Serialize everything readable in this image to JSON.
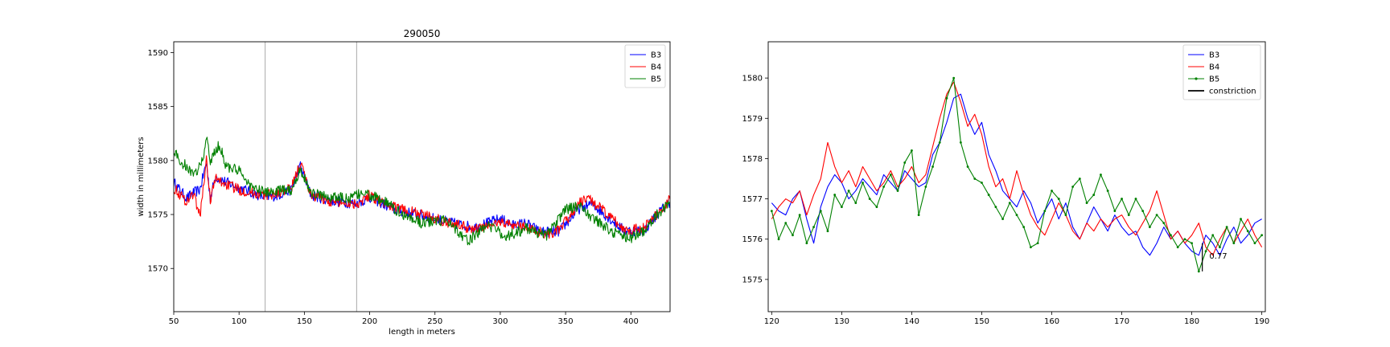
{
  "chart_data": [
    {
      "type": "line",
      "title": "290050",
      "xlabel": "length in meters",
      "ylabel": "width in millimeters",
      "xlim": [
        50,
        430
      ],
      "ylim": [
        1566,
        1591
      ],
      "xticks": [
        50,
        100,
        150,
        200,
        250,
        300,
        350,
        400
      ],
      "yticks": [
        1570,
        1575,
        1580,
        1585,
        1590
      ],
      "vlines": [
        120,
        190
      ],
      "vline_color": "#a0a0a0",
      "grid": false,
      "legend_position": "top-right",
      "noise": 0.5,
      "series": [
        {
          "name": "B3",
          "color": "#0000ff",
          "anchors": [
            [
              50,
              1578
            ],
            [
              55,
              1577.2
            ],
            [
              60,
              1576.5
            ],
            [
              65,
              1577
            ],
            [
              70,
              1577.3
            ],
            [
              75,
              1579.8
            ],
            [
              78,
              1576.5
            ],
            [
              82,
              1578.5
            ],
            [
              90,
              1578
            ],
            [
              100,
              1577.5
            ],
            [
              110,
              1577
            ],
            [
              120,
              1576.6
            ],
            [
              130,
              1576.8
            ],
            [
              140,
              1577.3
            ],
            [
              147,
              1579.5
            ],
            [
              155,
              1576.8
            ],
            [
              170,
              1576.3
            ],
            [
              190,
              1576
            ],
            [
              200,
              1576.6
            ],
            [
              210,
              1576
            ],
            [
              220,
              1575.4
            ],
            [
              240,
              1574.9
            ],
            [
              260,
              1574.3
            ],
            [
              280,
              1573.8
            ],
            [
              300,
              1574.6
            ],
            [
              310,
              1574
            ],
            [
              320,
              1574.2
            ],
            [
              330,
              1573.4
            ],
            [
              345,
              1573.4
            ],
            [
              360,
              1575.5
            ],
            [
              370,
              1576
            ],
            [
              380,
              1575
            ],
            [
              395,
              1573.5
            ],
            [
              410,
              1573.5
            ],
            [
              420,
              1575
            ],
            [
              430,
              1576.2
            ]
          ]
        },
        {
          "name": "B4",
          "color": "#ff0000",
          "anchors": [
            [
              50,
              1577.5
            ],
            [
              55,
              1576.8
            ],
            [
              60,
              1576.2
            ],
            [
              65,
              1577
            ],
            [
              70,
              1574.8
            ],
            [
              75,
              1580
            ],
            [
              78,
              1576.4
            ],
            [
              82,
              1578.3
            ],
            [
              90,
              1577.8
            ],
            [
              100,
              1577.3
            ],
            [
              110,
              1577
            ],
            [
              120,
              1576.8
            ],
            [
              130,
              1577
            ],
            [
              140,
              1577.4
            ],
            [
              147,
              1579.8
            ],
            [
              155,
              1576.8
            ],
            [
              170,
              1576.2
            ],
            [
              190,
              1576
            ],
            [
              200,
              1576.8
            ],
            [
              210,
              1576.1
            ],
            [
              220,
              1575.6
            ],
            [
              240,
              1575
            ],
            [
              260,
              1574.3
            ],
            [
              280,
              1573.6
            ],
            [
              300,
              1574.3
            ],
            [
              320,
              1573.8
            ],
            [
              335,
              1573.2
            ],
            [
              345,
              1573.5
            ],
            [
              360,
              1576
            ],
            [
              368,
              1576.5
            ],
            [
              380,
              1575.2
            ],
            [
              395,
              1573.6
            ],
            [
              410,
              1573.7
            ],
            [
              420,
              1575
            ],
            [
              430,
              1576.4
            ]
          ]
        },
        {
          "name": "B5",
          "color": "#008000",
          "anchors": [
            [
              50,
              1581
            ],
            [
              55,
              1579.8
            ],
            [
              60,
              1579.5
            ],
            [
              65,
              1578.5
            ],
            [
              72,
              1580
            ],
            [
              75,
              1582
            ],
            [
              78,
              1580
            ],
            [
              85,
              1581.5
            ],
            [
              90,
              1579.5
            ],
            [
              100,
              1579
            ],
            [
              110,
              1577.5
            ],
            [
              120,
              1577
            ],
            [
              130,
              1577.2
            ],
            [
              140,
              1577.3
            ],
            [
              147,
              1579.2
            ],
            [
              155,
              1577
            ],
            [
              170,
              1576.6
            ],
            [
              185,
              1576.5
            ],
            [
              195,
              1577
            ],
            [
              210,
              1576.3
            ],
            [
              225,
              1575
            ],
            [
              240,
              1574.2
            ],
            [
              260,
              1574.5
            ],
            [
              275,
              1572.5
            ],
            [
              290,
              1574
            ],
            [
              305,
              1573
            ],
            [
              320,
              1573.7
            ],
            [
              335,
              1573
            ],
            [
              350,
              1575.5
            ],
            [
              360,
              1575.8
            ],
            [
              370,
              1574.8
            ],
            [
              385,
              1573.4
            ],
            [
              400,
              1572.8
            ],
            [
              410,
              1573.5
            ],
            [
              420,
              1575
            ],
            [
              430,
              1576
            ]
          ]
        }
      ]
    },
    {
      "type": "line",
      "title": "",
      "xlabel": "",
      "ylabel": "",
      "xlim": [
        119.5,
        190.5
      ],
      "ylim": [
        1574.2,
        1580.9
      ],
      "xticks": [
        120,
        130,
        140,
        150,
        160,
        170,
        180,
        190
      ],
      "yticks": [
        1575,
        1576,
        1577,
        1578,
        1579,
        1580
      ],
      "grid": false,
      "legend_position": "top-right",
      "annotation": {
        "text": "0.77",
        "x": 182.5,
        "y": 1575.6,
        "line_x": 181.5,
        "line_y": [
          1575.2,
          1575.9
        ]
      },
      "series": [
        {
          "name": "B3",
          "color": "#0000ff",
          "marker": false,
          "x": [
            120,
            121,
            122,
            123,
            124,
            125,
            126,
            127,
            128,
            129,
            130,
            131,
            132,
            133,
            134,
            135,
            136,
            137,
            138,
            139,
            140,
            141,
            142,
            143,
            144,
            145,
            146,
            147,
            148,
            149,
            150,
            151,
            152,
            153,
            154,
            155,
            156,
            157,
            158,
            159,
            160,
            161,
            162,
            163,
            164,
            165,
            166,
            167,
            168,
            169,
            170,
            171,
            172,
            173,
            174,
            175,
            176,
            177,
            178,
            179,
            180,
            181,
            182,
            183,
            184,
            185,
            186,
            187,
            188,
            189,
            190
          ],
          "y": [
            1576.9,
            1576.7,
            1576.6,
            1577.0,
            1577.2,
            1576.5,
            1575.9,
            1576.8,
            1577.3,
            1577.6,
            1577.4,
            1577.0,
            1577.2,
            1577.5,
            1577.3,
            1577.1,
            1577.6,
            1577.4,
            1577.2,
            1577.7,
            1577.5,
            1577.3,
            1577.4,
            1578.1,
            1578.4,
            1578.9,
            1579.5,
            1579.6,
            1579.0,
            1578.6,
            1578.9,
            1578.1,
            1577.7,
            1577.2,
            1577.0,
            1576.8,
            1577.2,
            1576.9,
            1576.4,
            1576.7,
            1577.0,
            1576.5,
            1576.9,
            1576.3,
            1576.0,
            1576.4,
            1576.8,
            1576.5,
            1576.2,
            1576.6,
            1576.3,
            1576.1,
            1576.2,
            1575.8,
            1575.6,
            1575.9,
            1576.3,
            1576.0,
            1576.2,
            1575.9,
            1575.7,
            1575.6,
            1576.1,
            1575.9,
            1575.6,
            1576.0,
            1576.3,
            1575.9,
            1576.1,
            1576.4,
            1576.5
          ]
        },
        {
          "name": "B4",
          "color": "#ff0000",
          "marker": false,
          "x": [
            120,
            121,
            122,
            123,
            124,
            125,
            126,
            127,
            128,
            129,
            130,
            131,
            132,
            133,
            134,
            135,
            136,
            137,
            138,
            139,
            140,
            141,
            142,
            143,
            144,
            145,
            146,
            147,
            148,
            149,
            150,
            151,
            152,
            153,
            154,
            155,
            156,
            157,
            158,
            159,
            160,
            161,
            162,
            163,
            164,
            165,
            166,
            167,
            168,
            169,
            170,
            171,
            172,
            173,
            174,
            175,
            176,
            177,
            178,
            179,
            180,
            181,
            182,
            183,
            184,
            185,
            186,
            187,
            188,
            189,
            190
          ],
          "y": [
            1576.5,
            1576.8,
            1577.0,
            1576.9,
            1577.2,
            1576.6,
            1577.1,
            1577.5,
            1578.4,
            1577.8,
            1577.4,
            1577.7,
            1577.3,
            1577.8,
            1577.5,
            1577.2,
            1577.4,
            1577.7,
            1577.3,
            1577.5,
            1577.8,
            1577.4,
            1577.6,
            1578.3,
            1579.0,
            1579.6,
            1579.9,
            1579.4,
            1578.8,
            1579.1,
            1578.6,
            1577.8,
            1577.3,
            1577.5,
            1577.0,
            1577.7,
            1577.1,
            1576.6,
            1576.3,
            1576.1,
            1576.5,
            1576.9,
            1576.6,
            1576.2,
            1576.0,
            1576.4,
            1576.2,
            1576.5,
            1576.3,
            1576.5,
            1576.6,
            1576.3,
            1576.1,
            1576.4,
            1576.7,
            1577.2,
            1576.6,
            1576.0,
            1576.2,
            1575.9,
            1576.1,
            1576.4,
            1575.8,
            1575.6,
            1576.0,
            1576.3,
            1575.9,
            1576.2,
            1576.5,
            1576.1,
            1575.8
          ]
        },
        {
          "name": "B5",
          "color": "#008000",
          "marker": true,
          "x": [
            120,
            121,
            122,
            123,
            124,
            125,
            126,
            127,
            128,
            129,
            130,
            131,
            132,
            133,
            134,
            135,
            136,
            137,
            138,
            139,
            140,
            141,
            142,
            143,
            144,
            145,
            146,
            147,
            148,
            149,
            150,
            151,
            152,
            153,
            154,
            155,
            156,
            157,
            158,
            159,
            160,
            161,
            162,
            163,
            164,
            165,
            166,
            167,
            168,
            169,
            170,
            171,
            172,
            173,
            174,
            175,
            176,
            177,
            178,
            179,
            180,
            181,
            182,
            183,
            184,
            185,
            186,
            187,
            188,
            189,
            190
          ],
          "y": [
            1576.7,
            1576.0,
            1576.4,
            1576.1,
            1576.6,
            1575.9,
            1576.3,
            1576.7,
            1576.2,
            1577.1,
            1576.8,
            1577.2,
            1576.9,
            1577.4,
            1577.0,
            1576.8,
            1577.3,
            1577.6,
            1577.2,
            1577.9,
            1578.2,
            1576.6,
            1577.3,
            1577.8,
            1578.4,
            1579.5,
            1580.0,
            1578.4,
            1577.8,
            1577.5,
            1577.4,
            1577.1,
            1576.8,
            1576.5,
            1576.9,
            1576.6,
            1576.3,
            1575.8,
            1575.9,
            1576.7,
            1577.2,
            1577.0,
            1576.6,
            1577.3,
            1577.5,
            1576.9,
            1577.1,
            1577.6,
            1577.2,
            1576.7,
            1577.0,
            1576.6,
            1577.0,
            1576.7,
            1576.3,
            1576.6,
            1576.4,
            1576.1,
            1575.8,
            1576.0,
            1575.9,
            1575.2,
            1575.7,
            1576.1,
            1575.8,
            1576.3,
            1575.9,
            1576.5,
            1576.2,
            1575.9,
            1576.1
          ]
        },
        {
          "name": "constriction",
          "color": "#000000",
          "marker": false,
          "x": [],
          "y": []
        }
      ]
    }
  ]
}
